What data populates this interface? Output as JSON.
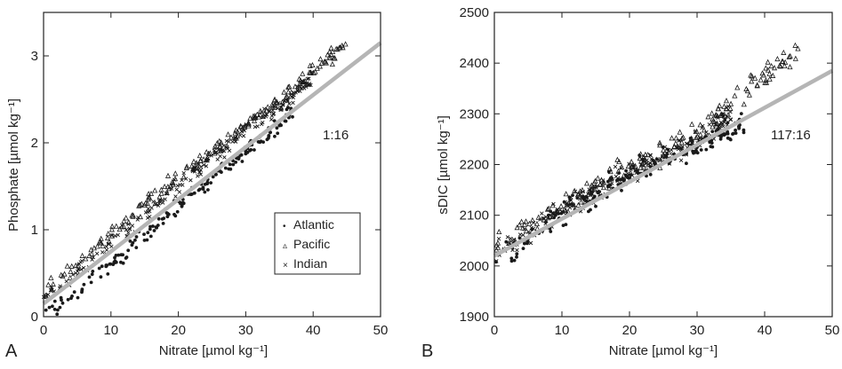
{
  "chart_data": [
    {
      "type": "scatter",
      "panel": "A",
      "xlabel": "Nitrate [µmol kg⁻¹]",
      "ylabel": "Phosphate  [µmol kg⁻¹]",
      "xlim": [
        0,
        50
      ],
      "ylim": [
        0,
        3.5
      ],
      "xticks": [
        0,
        10,
        20,
        30,
        40,
        50
      ],
      "yticks": [
        0,
        1,
        2,
        3
      ],
      "annotation": "1:16",
      "legend_position": "lower-right",
      "legend": [
        {
          "name": "Atlantic",
          "marker": "•"
        },
        {
          "name": "Pacific",
          "marker": "▵"
        },
        {
          "name": "Indian",
          "marker": "×"
        }
      ],
      "reference_line": {
        "x": [
          0,
          50
        ],
        "y": [
          0.15,
          3.15
        ],
        "color": "#b5b5b5"
      },
      "series": [
        {
          "name": "Atlantic",
          "marker": "dot",
          "trend": {
            "x": [
              0,
              5,
              10,
              15,
              20,
              25,
              30,
              35,
              37
            ],
            "y": [
              0.02,
              0.28,
              0.6,
              0.93,
              1.27,
              1.6,
              1.92,
              2.22,
              2.35
            ]
          }
        },
        {
          "name": "Pacific",
          "marker": "triangle",
          "trend": {
            "x": [
              0,
              5,
              10,
              15,
              20,
              25,
              30,
              35,
              40,
              45
            ],
            "y": [
              0.3,
              0.62,
              0.95,
              1.28,
              1.6,
              1.9,
              2.2,
              2.5,
              2.85,
              3.15
            ]
          }
        },
        {
          "name": "Indian",
          "marker": "cross",
          "trend": {
            "x": [
              0,
              5,
              10,
              15,
              20,
              25,
              30,
              35,
              40
            ],
            "y": [
              0.2,
              0.5,
              0.83,
              1.17,
              1.5,
              1.82,
              2.12,
              2.42,
              2.75
            ]
          }
        }
      ]
    },
    {
      "type": "scatter",
      "panel": "B",
      "xlabel": "Nitrate [µmol kg⁻¹]",
      "ylabel": "sDIC  [µmol kg⁻¹]",
      "xlim": [
        0,
        50
      ],
      "ylim": [
        1900,
        2500
      ],
      "xticks": [
        0,
        10,
        20,
        30,
        40,
        50
      ],
      "yticks": [
        1900,
        2000,
        2100,
        2200,
        2300,
        2400,
        2500
      ],
      "annotation": "117:16",
      "reference_line": {
        "x": [
          0,
          50
        ],
        "y": [
          2020,
          2385
        ],
        "color": "#b5b5b5"
      },
      "series": [
        {
          "name": "Atlantic",
          "marker": "dot",
          "trend": {
            "x": [
              0,
              5,
              10,
              15,
              20,
              25,
              30,
              35,
              37
            ],
            "y": [
              2000,
              2050,
              2100,
              2140,
              2180,
              2210,
              2240,
              2270,
              2280
            ]
          }
        },
        {
          "name": "Pacific",
          "marker": "triangle",
          "trend": {
            "x": [
              0,
              5,
              10,
              15,
              20,
              25,
              30,
              35,
              40,
              45
            ],
            "y": [
              2040,
              2080,
              2120,
              2160,
              2195,
              2225,
              2260,
              2320,
              2380,
              2420
            ]
          }
        },
        {
          "name": "Indian",
          "marker": "cross",
          "trend": {
            "x": [
              0,
              5,
              10,
              15,
              20,
              25,
              30,
              35
            ],
            "y": [
              2020,
              2065,
              2110,
              2150,
              2185,
              2215,
              2250,
              2300
            ]
          }
        }
      ]
    }
  ]
}
